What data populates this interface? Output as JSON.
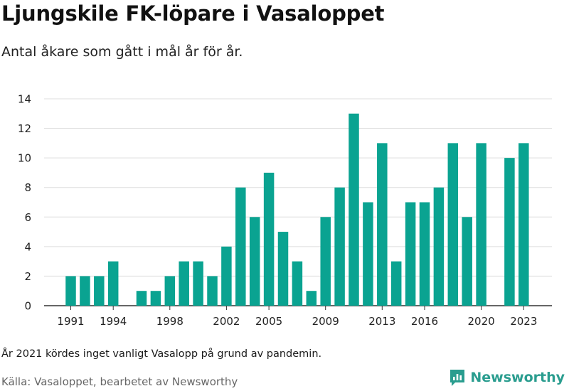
{
  "header": {
    "title": "Ljungskile FK-löpare i Vasaloppet",
    "subtitle": "Antal åkare som gått i mål år för år."
  },
  "footer": {
    "note": "År 2021 kördes inget vanligt Vasalopp på grund av pandemin.",
    "source": "Källa: Vasaloppet, bearbetet av Newsworthy",
    "logo_text": "Newsworthy",
    "logo_icon": "newsworthy-chart-icon"
  },
  "colors": {
    "bar": "#0aa391",
    "grid": "#dddddd",
    "logo": "#2a9d8f"
  },
  "chart_data": {
    "type": "bar",
    "title": "Ljungskile FK-löpare i Vasaloppet",
    "subtitle": "Antal åkare som gått i mål år för år.",
    "xlabel": "",
    "ylabel": "",
    "ylim": [
      0,
      14
    ],
    "yticks": [
      0,
      2,
      4,
      6,
      8,
      10,
      12,
      14
    ],
    "xtick_labels": [
      "1991",
      "1994",
      "1998",
      "2002",
      "2005",
      "2009",
      "2013",
      "2016",
      "2020",
      "2023"
    ],
    "grid": true,
    "categories": [
      1991,
      1992,
      1993,
      1994,
      1995,
      1996,
      1997,
      1998,
      1999,
      2000,
      2001,
      2002,
      2003,
      2004,
      2005,
      2006,
      2007,
      2008,
      2009,
      2010,
      2011,
      2012,
      2013,
      2014,
      2015,
      2016,
      2017,
      2018,
      2019,
      2020,
      2021,
      2022,
      2023
    ],
    "values": [
      2,
      2,
      2,
      3,
      0,
      1,
      1,
      2,
      3,
      3,
      2,
      4,
      8,
      6,
      9,
      5,
      3,
      1,
      6,
      8,
      13,
      7,
      11,
      3,
      7,
      7,
      8,
      11,
      6,
      11,
      0,
      10,
      11
    ]
  }
}
